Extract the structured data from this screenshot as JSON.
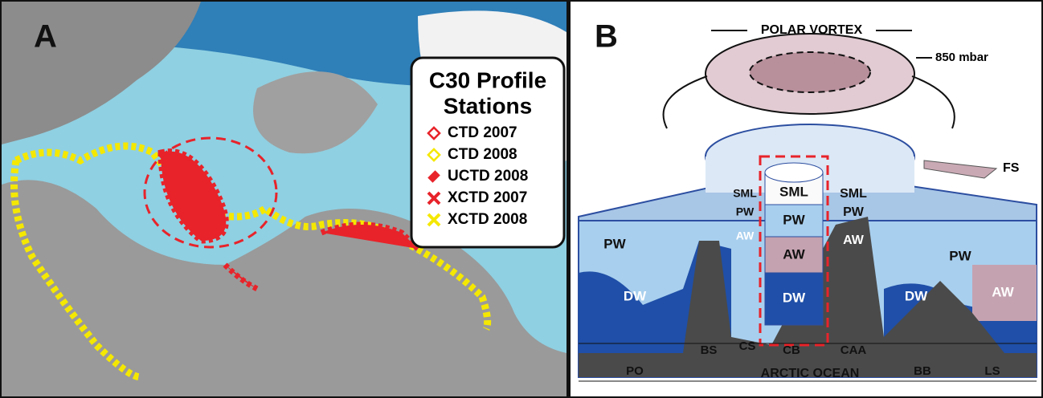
{
  "panel_a": {
    "label": "A",
    "legend": {
      "title_lines": [
        "C30 Profile",
        "Stations"
      ],
      "entries": [
        {
          "label": "CTD 2007"
        },
        {
          "label": "CTD 2008"
        },
        {
          "label": "UCTD 2008"
        },
        {
          "label": "XCTD 2007"
        },
        {
          "label": "XCTD 2008"
        }
      ]
    }
  },
  "panel_b": {
    "label": "B",
    "vortex": "POLAR VORTEX",
    "pressure": "850 mbar",
    "inflow": "FS",
    "column_layers": [
      "SML",
      "PW",
      "AW",
      "DW"
    ],
    "left_layers": [
      "PW",
      "DW"
    ],
    "cs_layers": [
      "SML",
      "PW",
      "AW"
    ],
    "caa_layers": [
      "SML",
      "PW",
      "AW"
    ],
    "right_layers": [
      "PW",
      "DW",
      "AW"
    ],
    "regions": [
      "PO",
      "BS",
      "CS",
      "CB",
      "CAA",
      "BB",
      "LS"
    ],
    "ocean": "ARCTIC OCEAN"
  }
}
